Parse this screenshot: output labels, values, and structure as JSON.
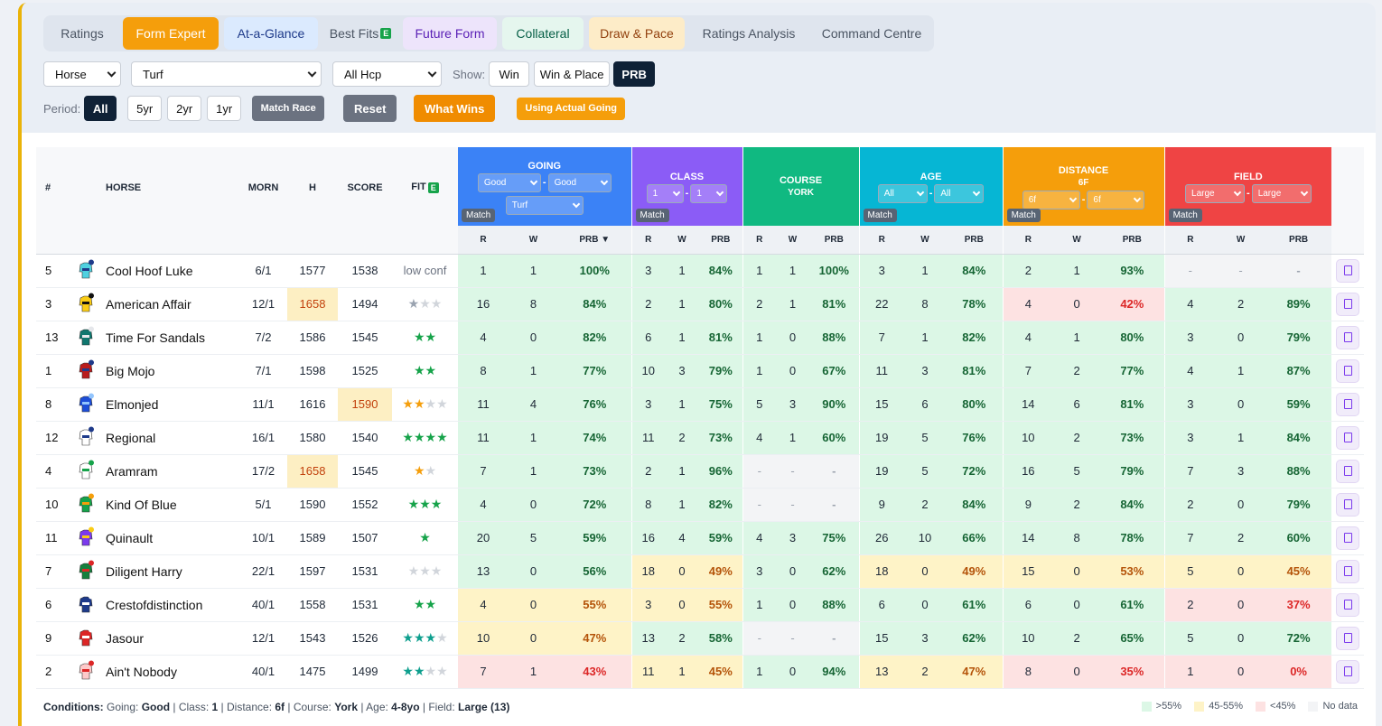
{
  "tabs": [
    {
      "label": "Ratings",
      "bg": "transparent",
      "fg": "#4b5563",
      "w": 78
    },
    {
      "label": "Form Expert",
      "bg": "#f59e0b",
      "fg": "#ffffff",
      "w": 106
    },
    {
      "label": "At-a-Glance",
      "bg": "#dbeafe",
      "fg": "#1e3a8a",
      "w": 104
    },
    {
      "label": "Best Fits",
      "bg": "transparent",
      "fg": "#4b5563",
      "w": 82,
      "badge": "E"
    },
    {
      "label": "Future Form",
      "bg": "#ede4fb",
      "fg": "#5b21b6",
      "w": 104
    },
    {
      "label": "Collateral",
      "bg": "#e5f6ee",
      "fg": "#065f46",
      "w": 90
    },
    {
      "label": "Draw & Pace",
      "bg": "#fdecc8",
      "fg": "#92400e",
      "w": 106
    },
    {
      "label": "Ratings Analysis",
      "bg": "transparent",
      "fg": "#4b5563",
      "w": 130
    },
    {
      "label": "Command Centre",
      "bg": "transparent",
      "fg": "#4b5563",
      "w": 130
    }
  ],
  "filters": {
    "horse": "Horse",
    "surface": "Turf",
    "race_type": "All Hcp",
    "show_label": "Show:",
    "show_win": "Win",
    "show_win_place": "Win & Place",
    "show_prb": "PRB"
  },
  "period": {
    "label": "Period:",
    "all": "All",
    "y5": "5yr",
    "y2": "2yr",
    "y1": "1yr",
    "match_race": "Match Race",
    "reset": "Reset",
    "what_wins": "What Wins",
    "actual_going": "Using Actual Going"
  },
  "headers": {
    "num": "#",
    "horse": "HORSE",
    "morn": "MORN",
    "h": "H",
    "score": "SCORE",
    "fit": "FIT",
    "fit_badge": "E",
    "r": "R",
    "w": "W",
    "prb": "PRB",
    "prb_sorted": "PRB ▼",
    "match": "Match"
  },
  "groups": [
    {
      "title": "GOING",
      "color": "#3b82f6",
      "sel": [
        "Good",
        "Good",
        "Turf"
      ]
    },
    {
      "title": "CLASS",
      "color": "#8b5cf6",
      "sel": [
        "1",
        "1"
      ]
    },
    {
      "title": "COURSE",
      "color": "#10b981",
      "sub": "YORK"
    },
    {
      "title": "AGE",
      "color": "#06b6d4",
      "sel": [
        "All",
        "All"
      ]
    },
    {
      "title": "DISTANCE",
      "color": "#f59e0b",
      "sub": "6F",
      "sel": [
        "6f",
        "6f"
      ]
    },
    {
      "title": "FIELD",
      "color": "#ef4444",
      "sel": [
        "Large",
        "Large"
      ]
    }
  ],
  "rows": [
    {
      "num": "5",
      "name": "Cool Hoof Luke",
      "morn": "6/1",
      "h": "1577",
      "score": "1538",
      "fit": "low conf",
      "silk": [
        "#4fd1e0",
        "#1e3a8a"
      ],
      "stats": [
        [
          "1",
          "1",
          "100%"
        ],
        [
          "3",
          "1",
          "84%"
        ],
        [
          "1",
          "1",
          "100%"
        ],
        [
          "3",
          "1",
          "84%"
        ],
        [
          "2",
          "1",
          "93%"
        ],
        [
          "-",
          "-",
          "-"
        ]
      ]
    },
    {
      "num": "3",
      "name": "American Affair",
      "morn": "12/1",
      "h": "1658",
      "hHL": true,
      "score": "1494",
      "fit": "1/3/gray",
      "silk": [
        "#facc15",
        "#111111"
      ],
      "stats": [
        [
          "16",
          "8",
          "84%"
        ],
        [
          "2",
          "1",
          "80%"
        ],
        [
          "2",
          "1",
          "81%"
        ],
        [
          "22",
          "8",
          "78%"
        ],
        [
          "4",
          "0",
          "42%"
        ],
        [
          "4",
          "2",
          "89%"
        ]
      ]
    },
    {
      "num": "13",
      "name": "Time For Sandals",
      "morn": "7/2",
      "h": "1586",
      "score": "1545",
      "fit": "2/2/green",
      "silk": [
        "#0f766e",
        "#e5e7eb"
      ],
      "stats": [
        [
          "4",
          "0",
          "82%"
        ],
        [
          "6",
          "1",
          "81%"
        ],
        [
          "1",
          "0",
          "88%"
        ],
        [
          "7",
          "1",
          "82%"
        ],
        [
          "4",
          "1",
          "80%"
        ],
        [
          "3",
          "0",
          "79%"
        ]
      ]
    },
    {
      "num": "1",
      "name": "Big Mojo",
      "morn": "7/1",
      "h": "1598",
      "score": "1525",
      "fit": "2/2/green",
      "silk": [
        "#b91c1c",
        "#1e3a8a"
      ],
      "stats": [
        [
          "8",
          "1",
          "77%"
        ],
        [
          "10",
          "3",
          "79%"
        ],
        [
          "1",
          "0",
          "67%"
        ],
        [
          "11",
          "3",
          "81%"
        ],
        [
          "7",
          "2",
          "77%"
        ],
        [
          "4",
          "1",
          "87%"
        ]
      ]
    },
    {
      "num": "8",
      "name": "Elmonjed",
      "morn": "11/1",
      "h": "1616",
      "score": "1590",
      "scoreHL": true,
      "fit": "2/4/orange",
      "silk": [
        "#1d4ed8",
        "#93c5fd"
      ],
      "stats": [
        [
          "11",
          "4",
          "76%"
        ],
        [
          "3",
          "1",
          "75%"
        ],
        [
          "5",
          "3",
          "90%"
        ],
        [
          "15",
          "6",
          "80%"
        ],
        [
          "14",
          "6",
          "81%"
        ],
        [
          "3",
          "0",
          "59%"
        ]
      ]
    },
    {
      "num": "12",
      "name": "Regional",
      "morn": "16/1",
      "h": "1580",
      "score": "1540",
      "fit": "4/4/green",
      "silk": [
        "#ffffff",
        "#1e3a8a"
      ],
      "stats": [
        [
          "11",
          "1",
          "74%"
        ],
        [
          "11",
          "2",
          "73%"
        ],
        [
          "4",
          "1",
          "60%"
        ],
        [
          "19",
          "5",
          "76%"
        ],
        [
          "10",
          "2",
          "73%"
        ],
        [
          "3",
          "1",
          "84%"
        ]
      ]
    },
    {
      "num": "4",
      "name": "Aramram",
      "morn": "17/2",
      "h": "1658",
      "hHL": true,
      "score": "1545",
      "fit": "1/2/orange",
      "silk": [
        "#ffffff",
        "#16a34a"
      ],
      "stats": [
        [
          "7",
          "1",
          "73%"
        ],
        [
          "2",
          "1",
          "96%"
        ],
        [
          "-",
          "-",
          "-"
        ],
        [
          "19",
          "5",
          "72%"
        ],
        [
          "16",
          "5",
          "79%"
        ],
        [
          "7",
          "3",
          "88%"
        ]
      ]
    },
    {
      "num": "10",
      "name": "Kind Of Blue",
      "morn": "5/1",
      "h": "1590",
      "score": "1552",
      "fit": "3/3/green",
      "silk": [
        "#16a34a",
        "#f59e0b"
      ],
      "stats": [
        [
          "4",
          "0",
          "72%"
        ],
        [
          "8",
          "1",
          "82%"
        ],
        [
          "-",
          "-",
          "-"
        ],
        [
          "9",
          "2",
          "84%"
        ],
        [
          "9",
          "2",
          "84%"
        ],
        [
          "2",
          "0",
          "79%"
        ]
      ]
    },
    {
      "num": "11",
      "name": "Quinault",
      "morn": "10/1",
      "h": "1589",
      "score": "1507",
      "fit": "1/1/green",
      "silk": [
        "#7c3aed",
        "#facc15"
      ],
      "stats": [
        [
          "20",
          "5",
          "59%"
        ],
        [
          "16",
          "4",
          "59%"
        ],
        [
          "4",
          "3",
          "75%"
        ],
        [
          "26",
          "10",
          "66%"
        ],
        [
          "14",
          "8",
          "78%"
        ],
        [
          "7",
          "2",
          "60%"
        ]
      ]
    },
    {
      "num": "7",
      "name": "Diligent Harry",
      "morn": "22/1",
      "h": "1597",
      "score": "1531",
      "fit": "0/3/gray",
      "silk": [
        "#15803d",
        "#dc2626"
      ],
      "stats": [
        [
          "13",
          "0",
          "56%"
        ],
        [
          "18",
          "0",
          "49%"
        ],
        [
          "3",
          "0",
          "62%"
        ],
        [
          "18",
          "0",
          "49%"
        ],
        [
          "15",
          "0",
          "53%"
        ],
        [
          "5",
          "0",
          "45%"
        ]
      ]
    },
    {
      "num": "6",
      "name": "Crestofdistinction",
      "morn": "40/1",
      "h": "1558",
      "score": "1531",
      "fit": "2/2/green",
      "silk": [
        "#1e3a8a",
        "#ffffff"
      ],
      "stats": [
        [
          "4",
          "0",
          "55%"
        ],
        [
          "3",
          "0",
          "55%"
        ],
        [
          "1",
          "0",
          "88%"
        ],
        [
          "6",
          "0",
          "61%"
        ],
        [
          "6",
          "0",
          "61%"
        ],
        [
          "2",
          "0",
          "37%"
        ]
      ]
    },
    {
      "num": "9",
      "name": "Jasour",
      "morn": "12/1",
      "h": "1543",
      "score": "1526",
      "fit": "3/4/teal",
      "silk": [
        "#dc2626",
        "#ffffff"
      ],
      "stats": [
        [
          "10",
          "0",
          "47%"
        ],
        [
          "13",
          "2",
          "58%"
        ],
        [
          "-",
          "-",
          "-"
        ],
        [
          "15",
          "3",
          "62%"
        ],
        [
          "10",
          "2",
          "65%"
        ],
        [
          "5",
          "0",
          "72%"
        ]
      ]
    },
    {
      "num": "2",
      "name": "Ain't Nobody",
      "morn": "40/1",
      "h": "1475",
      "score": "1499",
      "fit": "2/4/teal",
      "silk": [
        "#fecaca",
        "#dc2626"
      ],
      "stats": [
        [
          "7",
          "1",
          "43%"
        ],
        [
          "11",
          "1",
          "45%"
        ],
        [
          "1",
          "0",
          "94%"
        ],
        [
          "13",
          "2",
          "47%"
        ],
        [
          "8",
          "0",
          "35%"
        ],
        [
          "1",
          "0",
          "0%"
        ]
      ]
    }
  ],
  "footer": {
    "label": "Conditions:",
    "going_l": "Going:",
    "going": "Good",
    "class_l": "Class:",
    "class": "1",
    "dist_l": "Distance:",
    "dist": "6f",
    "course_l": "Course:",
    "course": "York",
    "age_l": "Age:",
    "age": "4-8yo",
    "field_l": "Field:",
    "field": "Large (13)"
  },
  "legend": [
    {
      "label": ">55%",
      "color": "#dcf7e6"
    },
    {
      "label": "45-55%",
      "color": "#fef3c7"
    },
    {
      "label": "<45%",
      "color": "#fde2e2"
    },
    {
      "label": "No data",
      "color": "#f3f4f6"
    }
  ],
  "colors": {
    "accent": "#f59e0b",
    "dark": "#0f2136"
  }
}
